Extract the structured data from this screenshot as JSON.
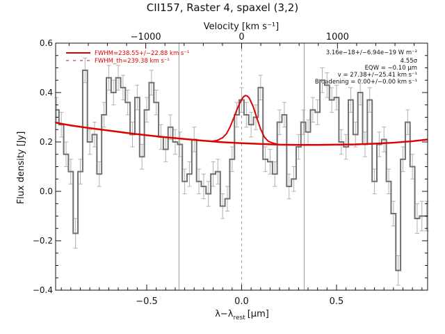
{
  "chart_data": {
    "type": "line",
    "title": "CII157, Raster 4, spaxel (3,2)",
    "top_axis_label": "Velocity [km s⁻¹]",
    "top_ticks": [
      {
        "x": -1000,
        "label": "−1000"
      },
      {
        "x": 0,
        "label": "0"
      },
      {
        "x": 1000,
        "label": "1000"
      }
    ],
    "xlabel": "λ−λ",
    "xlabel_sub": "rest",
    "xlabel_unit": "[μm]",
    "ylabel": "Flux density [Jy]",
    "xlim": [
      -0.98,
      0.98
    ],
    "ylim": [
      -0.4,
      0.6
    ],
    "x_ticks": [
      {
        "x": -0.5,
        "label": "−0.5"
      },
      {
        "x": 0.0,
        "label": "0.0"
      },
      {
        "x": 0.5,
        "label": "0.5"
      }
    ],
    "y_ticks": [
      {
        "y": -0.4,
        "label": "−0.4"
      },
      {
        "y": -0.2,
        "label": "−0.2"
      },
      {
        "y": 0.0,
        "label": "0.0"
      },
      {
        "y": 0.2,
        "label": "0.2"
      },
      {
        "y": 0.4,
        "label": "0.4"
      },
      {
        "y": 0.6,
        "label": "0.6"
      }
    ],
    "vertical_lines_solid": [
      -0.33,
      0.33
    ],
    "vertical_line_dashed": 0.0,
    "legend": [
      {
        "label": "FWHM=238.55+/−22.88 km s⁻¹",
        "style": "solid"
      },
      {
        "label": "FWHM_th=239.38 km s⁻¹",
        "style": "dashed"
      }
    ],
    "annotations": [
      "3.16e−18+/−6.94e−19 W m⁻²",
      "4.55σ",
      "EQW = −0.10 μm",
      "v = 27.38+/−25.41 km s⁻¹",
      "Broadening = 0.00+/−0.00 km s⁻¹"
    ],
    "colors": {
      "data": "#707070",
      "errors": "#b0b0b0",
      "fit": "#e00000",
      "axes": "#111111",
      "reflines": "#999999"
    },
    "series": [
      {
        "style": "histogram",
        "x": [
          -0.975,
          -0.95,
          -0.925,
          -0.9,
          -0.875,
          -0.85,
          -0.825,
          -0.8,
          -0.775,
          -0.75,
          -0.725,
          -0.7,
          -0.675,
          -0.65,
          -0.625,
          -0.6,
          -0.575,
          -0.55,
          -0.525,
          -0.5,
          -0.475,
          -0.45,
          -0.425,
          -0.4,
          -0.375,
          -0.35,
          -0.325,
          -0.3,
          -0.275,
          -0.25,
          -0.225,
          -0.2,
          -0.175,
          -0.15,
          -0.125,
          -0.1,
          -0.075,
          -0.05,
          -0.025,
          0.0,
          0.025,
          0.05,
          0.075,
          0.1,
          0.125,
          0.15,
          0.175,
          0.2,
          0.225,
          0.25,
          0.275,
          0.3,
          0.325,
          0.35,
          0.375,
          0.4,
          0.425,
          0.45,
          0.475,
          0.5,
          0.525,
          0.55,
          0.575,
          0.6,
          0.625,
          0.65,
          0.675,
          0.7,
          0.725,
          0.75,
          0.775,
          0.8,
          0.825,
          0.85,
          0.875,
          0.9,
          0.925,
          0.95,
          0.975
        ],
        "y": [
          0.33,
          0.27,
          0.15,
          0.08,
          -0.17,
          0.08,
          0.49,
          0.2,
          0.23,
          0.07,
          0.31,
          0.46,
          0.4,
          0.46,
          0.42,
          0.36,
          0.23,
          0.38,
          0.14,
          0.33,
          0.44,
          0.36,
          0.22,
          0.17,
          0.26,
          0.2,
          0.19,
          0.04,
          0.07,
          0.21,
          0.04,
          0.02,
          -0.01,
          0.07,
          0.08,
          -0.06,
          -0.03,
          0.13,
          0.31,
          0.37,
          0.31,
          0.27,
          0.3,
          0.42,
          0.13,
          0.12,
          0.07,
          0.28,
          0.31,
          0.02,
          0.05,
          0.18,
          0.28,
          0.24,
          0.33,
          0.32,
          0.45,
          0.43,
          0.37,
          0.38,
          0.2,
          0.18,
          0.37,
          0.23,
          0.4,
          0.19,
          0.37,
          0.04,
          0.19,
          0.21,
          0.04,
          -0.09,
          -0.32,
          0.13,
          0.28,
          0.1,
          -0.11,
          -0.1,
          -0.1
        ],
        "yerr": [
          0.05,
          0.05,
          0.05,
          0.05,
          0.06,
          0.05,
          0.05,
          0.05,
          0.05,
          0.05,
          0.05,
          0.05,
          0.05,
          0.05,
          0.05,
          0.05,
          0.05,
          0.05,
          0.05,
          0.05,
          0.05,
          0.05,
          0.05,
          0.05,
          0.05,
          0.05,
          0.05,
          0.05,
          0.05,
          0.05,
          0.05,
          0.05,
          0.05,
          0.05,
          0.05,
          0.05,
          0.05,
          0.05,
          0.05,
          0.05,
          0.05,
          0.05,
          0.05,
          0.05,
          0.05,
          0.05,
          0.05,
          0.05,
          0.05,
          0.05,
          0.05,
          0.05,
          0.05,
          0.05,
          0.05,
          0.05,
          0.05,
          0.05,
          0.05,
          0.05,
          0.05,
          0.05,
          0.05,
          0.05,
          0.05,
          0.05,
          0.05,
          0.05,
          0.05,
          0.05,
          0.05,
          0.05,
          0.06,
          0.05,
          0.05,
          0.05,
          0.06,
          0.06,
          0.06
        ]
      },
      {
        "style": "fit-continuum",
        "x": [
          -0.98,
          -0.9,
          -0.8,
          -0.7,
          -0.6,
          -0.5,
          -0.4,
          -0.3,
          -0.2,
          -0.1,
          0.0,
          0.1,
          0.2,
          0.3,
          0.4,
          0.5,
          0.6,
          0.7,
          0.8,
          0.9,
          0.98
        ],
        "y": [
          0.278,
          0.267,
          0.256,
          0.246,
          0.236,
          0.227,
          0.219,
          0.212,
          0.205,
          0.199,
          0.195,
          0.192,
          0.189,
          0.188,
          0.188,
          0.189,
          0.19,
          0.193,
          0.197,
          0.203,
          0.21
        ]
      },
      {
        "style": "fit-total",
        "x": [
          -0.16,
          -0.13,
          -0.1,
          -0.08,
          -0.06,
          -0.04,
          -0.02,
          0.0,
          0.01,
          0.02,
          0.03,
          0.04,
          0.06,
          0.08,
          0.1,
          0.12,
          0.14,
          0.17,
          0.2
        ],
        "y": [
          0.202,
          0.206,
          0.217,
          0.233,
          0.262,
          0.3,
          0.34,
          0.372,
          0.383,
          0.388,
          0.386,
          0.378,
          0.345,
          0.298,
          0.252,
          0.22,
          0.203,
          0.194,
          0.189
        ]
      }
    ]
  }
}
